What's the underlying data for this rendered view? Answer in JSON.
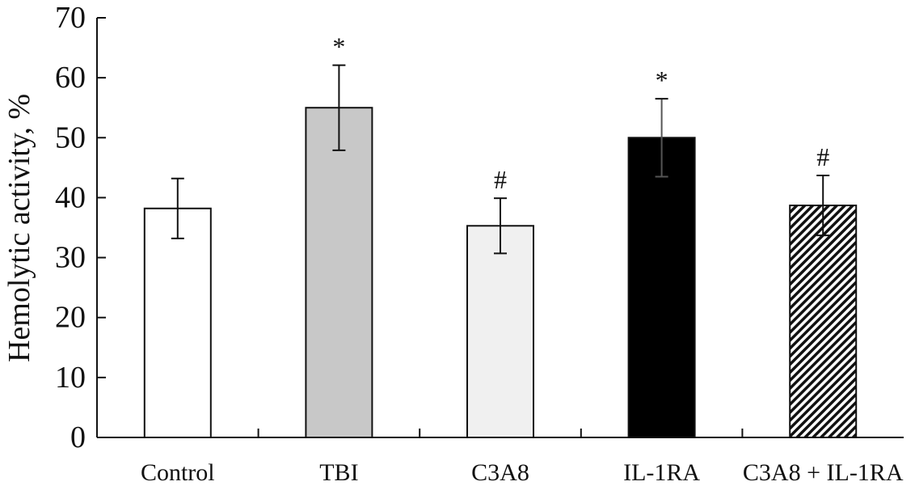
{
  "chart_data": {
    "type": "bar",
    "title": "",
    "xlabel": "",
    "ylabel": "Hemolytic activity, %",
    "ylim": [
      0,
      70
    ],
    "yticks": [
      0,
      10,
      20,
      30,
      40,
      50,
      60,
      70
    ],
    "grid": false,
    "categories": [
      "Control",
      "TBI",
      "C3A8",
      "IL-1RA",
      "C3A8 + IL-1RA"
    ],
    "values": [
      38.2,
      55.0,
      35.3,
      50.0,
      38.7
    ],
    "errors": [
      5.0,
      7.1,
      4.6,
      6.5,
      5.0
    ],
    "annotations": [
      "",
      "*",
      "#",
      "*",
      "#"
    ],
    "bar_fills": [
      "#ffffff",
      "#c8c8c8",
      "#f0f0f0",
      "#000000",
      "hatch"
    ]
  }
}
